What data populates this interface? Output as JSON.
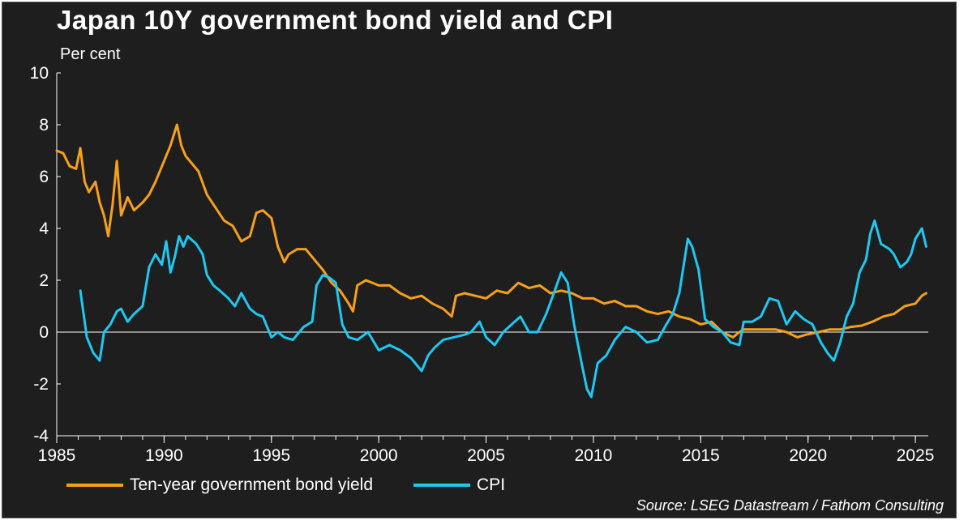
{
  "chart_data": {
    "type": "line",
    "title": "Japan 10Y government bond yield and CPI",
    "ylabel": "Per cent",
    "xlabel": "",
    "xlim": [
      1985,
      2025.6
    ],
    "ylim": [
      -4,
      10
    ],
    "x_ticks": [
      1985,
      1990,
      1995,
      2000,
      2005,
      2010,
      2015,
      2020,
      2025
    ],
    "y_ticks": [
      -4,
      -2,
      0,
      2,
      4,
      6,
      8,
      10
    ],
    "x_tick_labels": [
      "1985",
      "1990",
      "1995",
      "2000",
      "2005",
      "2010",
      "2015",
      "2020",
      "2025"
    ],
    "y_tick_labels": [
      "-4",
      "-2",
      "0",
      "2",
      "4",
      "6",
      "8",
      "10"
    ],
    "zero_line": true,
    "grid": false,
    "legend_position": "bottom-left",
    "series": [
      {
        "name": "Ten-year government bond yield",
        "color": "#f5a01c",
        "x": [
          1985.0,
          1985.3,
          1985.6,
          1985.9,
          1986.1,
          1986.3,
          1986.5,
          1986.8,
          1987.0,
          1987.2,
          1987.4,
          1987.6,
          1987.8,
          1988.0,
          1988.3,
          1988.6,
          1989.0,
          1989.3,
          1989.6,
          1990.0,
          1990.3,
          1990.6,
          1990.8,
          1991.0,
          1991.3,
          1991.6,
          1992.0,
          1992.4,
          1992.8,
          1993.2,
          1993.6,
          1994.0,
          1994.3,
          1994.6,
          1995.0,
          1995.3,
          1995.6,
          1995.8,
          1996.2,
          1996.6,
          1997.0,
          1997.4,
          1997.8,
          1998.2,
          1998.6,
          1998.8,
          1999.0,
          1999.4,
          2000.0,
          2000.5,
          2001.0,
          2001.5,
          2002.0,
          2002.5,
          2003.0,
          2003.4,
          2003.6,
          2004.0,
          2004.5,
          2005.0,
          2005.5,
          2006.0,
          2006.5,
          2007.0,
          2007.5,
          2008.0,
          2008.5,
          2009.0,
          2009.5,
          2010.0,
          2010.5,
          2011.0,
          2011.5,
          2012.0,
          2012.5,
          2013.0,
          2013.5,
          2014.0,
          2014.5,
          2015.0,
          2015.5,
          2016.0,
          2016.5,
          2016.8,
          2017.0,
          2017.5,
          2018.0,
          2018.5,
          2019.0,
          2019.5,
          2019.9,
          2020.5,
          2021.0,
          2021.5,
          2022.0,
          2022.5,
          2023.0,
          2023.5,
          2024.0,
          2024.5,
          2025.0,
          2025.3,
          2025.5
        ],
        "y": [
          7.0,
          6.9,
          6.4,
          6.3,
          7.1,
          5.8,
          5.4,
          5.8,
          5.0,
          4.5,
          3.7,
          4.9,
          6.6,
          4.5,
          5.2,
          4.7,
          5.0,
          5.3,
          5.8,
          6.6,
          7.2,
          8.0,
          7.2,
          6.8,
          6.5,
          6.2,
          5.3,
          4.8,
          4.3,
          4.1,
          3.5,
          3.7,
          4.6,
          4.7,
          4.4,
          3.3,
          2.7,
          3.0,
          3.2,
          3.2,
          2.8,
          2.4,
          1.9,
          1.6,
          1.1,
          0.8,
          1.8,
          2.0,
          1.8,
          1.8,
          1.5,
          1.3,
          1.4,
          1.1,
          0.9,
          0.6,
          1.4,
          1.5,
          1.4,
          1.3,
          1.6,
          1.5,
          1.9,
          1.7,
          1.8,
          1.5,
          1.6,
          1.5,
          1.3,
          1.3,
          1.1,
          1.2,
          1.0,
          1.0,
          0.8,
          0.7,
          0.8,
          0.6,
          0.5,
          0.3,
          0.4,
          0.0,
          -0.2,
          0.0,
          0.1,
          0.1,
          0.1,
          0.1,
          0.0,
          -0.2,
          -0.1,
          0.0,
          0.1,
          0.1,
          0.2,
          0.25,
          0.4,
          0.6,
          0.7,
          1.0,
          1.1,
          1.4,
          1.5
        ]
      },
      {
        "name": "CPI",
        "color": "#1ec8f0",
        "x": [
          1986.1,
          1986.4,
          1986.7,
          1987.0,
          1987.2,
          1987.5,
          1987.8,
          1988.0,
          1988.3,
          1988.6,
          1989.0,
          1989.3,
          1989.6,
          1989.9,
          1990.1,
          1990.3,
          1990.5,
          1990.7,
          1990.9,
          1991.1,
          1991.5,
          1991.8,
          1992.0,
          1992.3,
          1992.6,
          1993.0,
          1993.3,
          1993.6,
          1994.0,
          1994.3,
          1994.6,
          1995.0,
          1995.3,
          1995.6,
          1996.0,
          1996.5,
          1996.9,
          1997.1,
          1997.4,
          1997.7,
          1998.0,
          1998.3,
          1998.6,
          1999.0,
          1999.5,
          2000.0,
          2000.5,
          2001.0,
          2001.5,
          2002.0,
          2002.3,
          2002.6,
          2003.0,
          2003.5,
          2004.0,
          2004.3,
          2004.7,
          2005.0,
          2005.4,
          2005.8,
          2006.2,
          2006.6,
          2007.0,
          2007.4,
          2007.8,
          2008.2,
          2008.5,
          2008.8,
          2009.1,
          2009.4,
          2009.7,
          2009.9,
          2010.2,
          2010.6,
          2011.0,
          2011.5,
          2012.0,
          2012.5,
          2013.0,
          2013.4,
          2013.7,
          2014.0,
          2014.4,
          2014.6,
          2014.9,
          2015.2,
          2015.6,
          2016.0,
          2016.4,
          2016.8,
          2017.0,
          2017.4,
          2017.8,
          2018.2,
          2018.6,
          2019.0,
          2019.4,
          2019.8,
          2020.2,
          2020.6,
          2020.9,
          2021.2,
          2021.5,
          2021.8,
          2022.1,
          2022.4,
          2022.7,
          2022.9,
          2023.1,
          2023.4,
          2023.8,
          2024.0,
          2024.3,
          2024.6,
          2024.8,
          2025.0,
          2025.3,
          2025.5
        ],
        "y": [
          1.6,
          -0.2,
          -0.8,
          -1.1,
          0.0,
          0.3,
          0.8,
          0.9,
          0.4,
          0.7,
          1.0,
          2.5,
          3.0,
          2.6,
          3.5,
          2.3,
          2.9,
          3.7,
          3.3,
          3.7,
          3.4,
          3.0,
          2.2,
          1.8,
          1.6,
          1.3,
          1.0,
          1.5,
          0.9,
          0.7,
          0.6,
          -0.2,
          0.0,
          -0.2,
          -0.3,
          0.2,
          0.4,
          1.8,
          2.2,
          2.1,
          1.9,
          0.3,
          -0.2,
          -0.3,
          0.0,
          -0.7,
          -0.5,
          -0.7,
          -1.0,
          -1.5,
          -0.9,
          -0.6,
          -0.3,
          -0.2,
          -0.1,
          0.0,
          0.4,
          -0.2,
          -0.5,
          0.0,
          0.3,
          0.6,
          0.0,
          0.0,
          0.7,
          1.6,
          2.3,
          1.9,
          0.3,
          -1.0,
          -2.2,
          -2.5,
          -1.2,
          -0.9,
          -0.3,
          0.2,
          0.0,
          -0.4,
          -0.3,
          0.3,
          0.7,
          1.5,
          3.6,
          3.3,
          2.4,
          0.5,
          0.2,
          0.0,
          -0.4,
          -0.5,
          0.4,
          0.4,
          0.6,
          1.3,
          1.2,
          0.3,
          0.8,
          0.5,
          0.3,
          -0.4,
          -0.8,
          -1.1,
          -0.4,
          0.6,
          1.1,
          2.3,
          2.8,
          3.8,
          4.3,
          3.4,
          3.2,
          3.0,
          2.5,
          2.7,
          3.0,
          3.6,
          4.0,
          3.3
        ]
      }
    ]
  },
  "legend": {
    "items": [
      {
        "label": "Ten-year government bond yield",
        "color": "#f5a01c"
      },
      {
        "label": "CPI",
        "color": "#1ec8f0"
      }
    ]
  },
  "source": "Source: LSEG Datastream / Fathom Consulting"
}
